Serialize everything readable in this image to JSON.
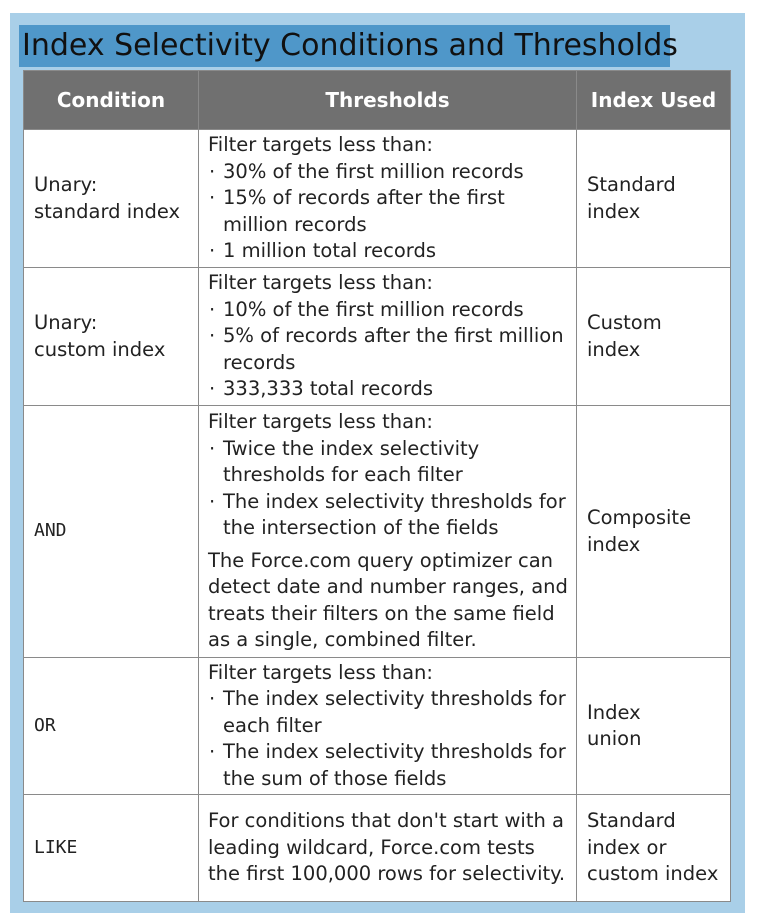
{
  "title": "Index Selectivity Conditions and Thresholds",
  "headers": {
    "condition": "Condition",
    "thresholds": "Thresholds",
    "index_used": "Index Used"
  },
  "rows": [
    {
      "condition_line1": "Unary:",
      "condition_line2": "standard index",
      "intro": "Filter targets less than:",
      "bullets": [
        "30% of the first million records",
        "15% of records after the first million records",
        "1 million total records"
      ],
      "index_line1": "Standard",
      "index_line2": "index"
    },
    {
      "condition_line1": "Unary:",
      "condition_line2": "custom index",
      "intro": "Filter targets less than:",
      "bullets": [
        "10% of the first million records",
        "5% of records after the first million records",
        "333,333 total records"
      ],
      "index_line1": "Custom",
      "index_line2": "index"
    },
    {
      "condition": "AND",
      "intro": "Filter targets less than:",
      "bullets": [
        "Twice the index selectivity thresholds for each filter",
        "The index selectivity thresholds for the intersection of the fields"
      ],
      "note": "The Force.com query optimizer can detect date and number ranges, and treats their filters on the same field as a single, combined filter.",
      "index_line1": "Composite",
      "index_line2": "index"
    },
    {
      "condition": "OR",
      "intro": "Filter targets less than:",
      "bullets": [
        "The index selectivity thresholds for each filter",
        "The index selectivity thresholds for the sum of those fields"
      ],
      "index_line1": "Index",
      "index_line2": "union"
    },
    {
      "condition": "LIKE",
      "text": "For conditions that don't start with a leading wildcard, Force.com tests the first 100,000 rows for selectivity.",
      "index_line1": "Standard",
      "index_line2": "index or",
      "index_line3": "custom index"
    }
  ],
  "bullet_glyph": "·"
}
